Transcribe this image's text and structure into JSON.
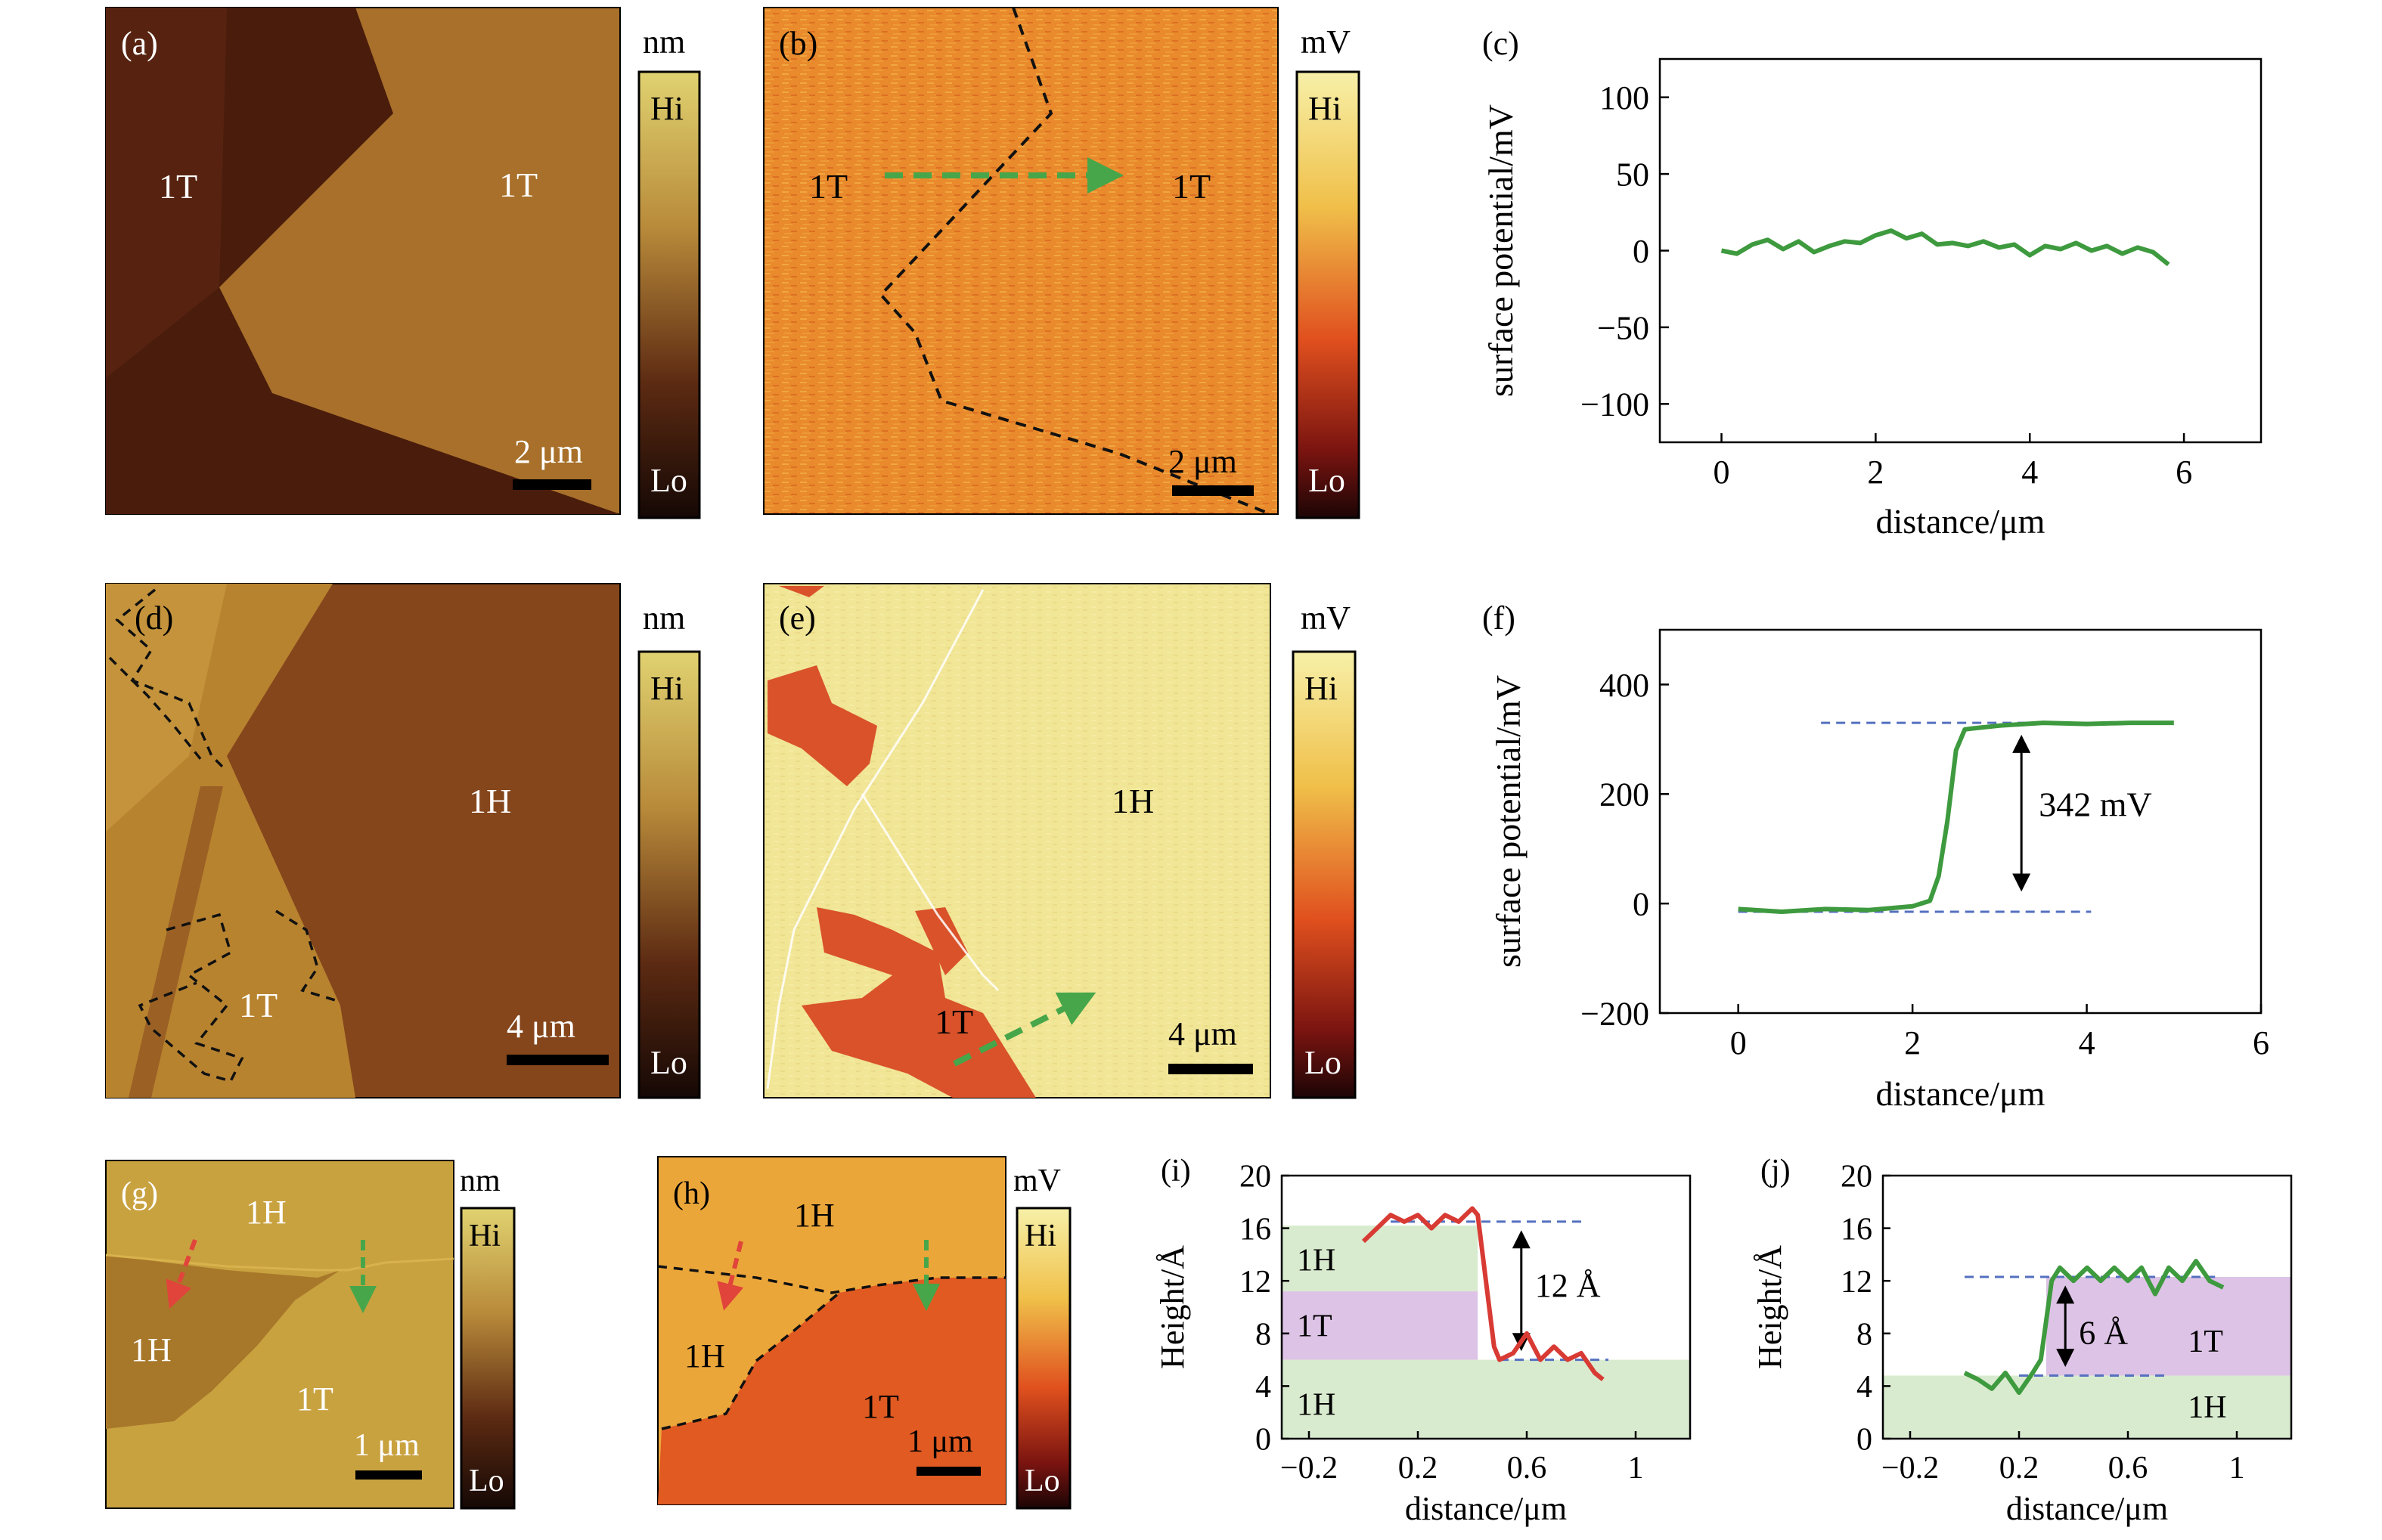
{
  "panels": {
    "a": {
      "label": "(a)",
      "regions": [
        "1T",
        "1T"
      ],
      "scalebar": "2 μm",
      "unit": "nm",
      "cb_hi": "Hi",
      "cb_lo": "Lo"
    },
    "b": {
      "label": "(b)",
      "regions": [
        "1T",
        "1T"
      ],
      "scalebar": "2 μm",
      "unit": "mV",
      "cb_hi": "Hi",
      "cb_lo": "Lo"
    },
    "d": {
      "label": "(d)",
      "regions": [
        "1H",
        "1T"
      ],
      "scalebar": "4 μm",
      "unit": "nm",
      "cb_hi": "Hi",
      "cb_lo": "Lo"
    },
    "e": {
      "label": "(e)",
      "regions": [
        "1H",
        "1T"
      ],
      "scalebar": "4 μm",
      "unit": "mV",
      "cb_hi": "Hi",
      "cb_lo": "Lo"
    },
    "g": {
      "label": "(g)",
      "regions": [
        "1H",
        "1H",
        "1T"
      ],
      "scalebar": "1 μm",
      "unit": "nm",
      "cb_hi": "Hi",
      "cb_lo": "Lo"
    },
    "h": {
      "label": "(h)",
      "regions": [
        "1H",
        "1H",
        "1T"
      ],
      "scalebar": "1 μm",
      "unit": "mV",
      "cb_hi": "Hi",
      "cb_lo": "Lo"
    }
  },
  "colors": {
    "afm": "#a8702a",
    "afm_dark": "#4a1c0c",
    "kpfm": "#e9932e",
    "kpfm_light": "#f4e7a0",
    "green_trace": "#3e9a3e",
    "red_trace": "#d83a34",
    "blue_dash": "#5570c0",
    "band_green": "#d9ebcf",
    "band_purple": "#ddc3e6"
  },
  "chart_data": [
    {
      "id": "c",
      "type": "line",
      "label": "(c)",
      "xlabel": "distance/μm",
      "ylabel": "surface potential/mV",
      "xlim": [
        -0.8,
        7
      ],
      "ylim": [
        -125,
        125
      ],
      "xticks": [
        0,
        2,
        4,
        6
      ],
      "yticks": [
        100,
        50,
        0,
        -50,
        -100
      ],
      "series": [
        {
          "x": [
            0,
            0.2,
            0.4,
            0.6,
            0.8,
            1.0,
            1.2,
            1.4,
            1.6,
            1.8,
            2.0,
            2.2,
            2.4,
            2.6,
            2.8,
            3.0,
            3.2,
            3.4,
            3.6,
            3.8,
            4.0,
            4.2,
            4.4,
            4.6,
            4.8,
            5.0,
            5.2,
            5.4,
            5.6,
            5.8
          ],
          "y": [
            0,
            -2,
            4,
            7,
            1,
            6,
            -1,
            3,
            6,
            5,
            10,
            13,
            8,
            11,
            4,
            5,
            3,
            6,
            2,
            4,
            -3,
            3,
            1,
            5,
            0,
            3,
            -2,
            2,
            -1,
            -9
          ]
        }
      ]
    },
    {
      "id": "f",
      "type": "line",
      "label": "(f)",
      "xlabel": "distance/μm",
      "ylabel": "surface potential/mV",
      "xlim": [
        -0.9,
        6
      ],
      "ylim": [
        -200,
        500
      ],
      "xticks": [
        0,
        2,
        4,
        6
      ],
      "yticks": [
        400,
        200,
        0,
        -200
      ],
      "annotations": [
        "342 mV"
      ],
      "series": [
        {
          "x": [
            0,
            0.5,
            1.0,
            1.5,
            2.0,
            2.2,
            2.3,
            2.4,
            2.5,
            2.6,
            2.7,
            3.0,
            3.5,
            4.0,
            4.5,
            5.0
          ],
          "y": [
            -10,
            -15,
            -10,
            -12,
            -5,
            5,
            50,
            150,
            280,
            318,
            320,
            325,
            330,
            328,
            330,
            330
          ]
        }
      ]
    },
    {
      "id": "i",
      "type": "line",
      "label": "(i)",
      "xlabel": "distance/μm",
      "ylabel": "Height/Å",
      "xlim": [
        -0.3,
        1.2
      ],
      "ylim": [
        0,
        20
      ],
      "xticks": [
        -0.2,
        0.2,
        0.6,
        1.0
      ],
      "yticks": [
        20,
        16,
        12,
        8,
        4,
        0
      ],
      "bands": [
        "1H",
        "1T",
        "1H"
      ],
      "annotations": [
        "12 Å"
      ],
      "series": [
        {
          "x": [
            0.0,
            0.05,
            0.1,
            0.15,
            0.2,
            0.25,
            0.3,
            0.35,
            0.4,
            0.42,
            0.45,
            0.48,
            0.5,
            0.55,
            0.6,
            0.65,
            0.7,
            0.75,
            0.8,
            0.85,
            0.88
          ],
          "y": [
            15,
            16,
            17,
            16.5,
            17,
            16,
            17,
            16.5,
            17.5,
            17,
            12,
            7,
            6,
            6.5,
            8,
            6,
            7,
            6,
            6.5,
            5,
            4.5
          ]
        }
      ]
    },
    {
      "id": "j",
      "type": "line",
      "label": "(j)",
      "xlabel": "distance/μm",
      "ylabel": "Height/Å",
      "xlim": [
        -0.3,
        1.2
      ],
      "ylim": [
        0,
        20
      ],
      "xticks": [
        -0.2,
        0.2,
        0.6,
        1.0
      ],
      "yticks": [
        20,
        16,
        12,
        8,
        4,
        0
      ],
      "bands": [
        "1T",
        "1H"
      ],
      "annotations": [
        "6 Å"
      ],
      "series": [
        {
          "x": [
            0.0,
            0.05,
            0.1,
            0.15,
            0.2,
            0.25,
            0.28,
            0.3,
            0.32,
            0.35,
            0.4,
            0.45,
            0.5,
            0.55,
            0.6,
            0.65,
            0.7,
            0.75,
            0.8,
            0.85,
            0.9,
            0.95
          ],
          "y": [
            5,
            4.5,
            3.8,
            5,
            3.5,
            5,
            6,
            9,
            12,
            13,
            12,
            13,
            12,
            13,
            12,
            13,
            11,
            13,
            12,
            13.5,
            12,
            11.5
          ]
        }
      ]
    }
  ]
}
